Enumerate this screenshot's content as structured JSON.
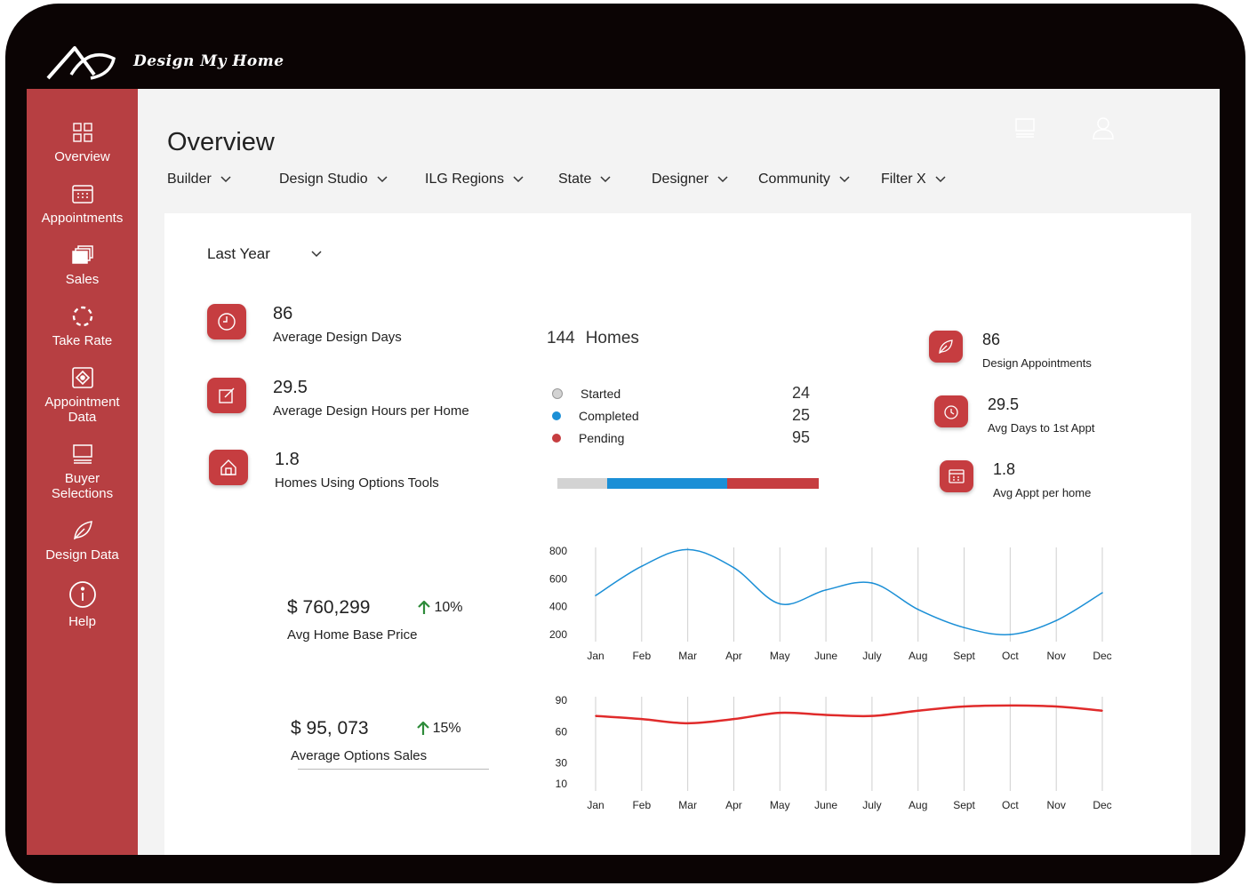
{
  "app": {
    "brand": "Design My Home"
  },
  "sidebar": {
    "items": [
      {
        "label": "Overview",
        "icon": "grid-icon"
      },
      {
        "label": "Appointments",
        "icon": "calendar-icon"
      },
      {
        "label": "Sales",
        "icon": "images-icon"
      },
      {
        "label": "Take Rate",
        "icon": "dashed-circle-icon"
      },
      {
        "label": "Appointment Data",
        "icon": "data-grid-icon"
      },
      {
        "label": "Buyer Selections",
        "icon": "monitor-icon"
      },
      {
        "label": "Design Data",
        "icon": "leaf-icon"
      },
      {
        "label": "Help",
        "icon": "info-icon"
      }
    ]
  },
  "header": {
    "title": "Overview"
  },
  "filters": {
    "builder": "Builder",
    "design_studio": "Design Studio",
    "ilg_regions": "ILG Regions",
    "state": "State",
    "designer": "Designer",
    "community": "Community",
    "filter_x": "Filter X"
  },
  "period": {
    "selected": "Last Year"
  },
  "metrics_left": [
    {
      "value": "86",
      "label": "Average Design Days",
      "icon": "clock-icon"
    },
    {
      "value": "29.5",
      "label": "Average Design Hours per Home",
      "icon": "edit-icon"
    },
    {
      "value": "1.8",
      "label": "Homes Using Options Tools",
      "icon": "home-icon"
    }
  ],
  "homes": {
    "count": "144",
    "label": "Homes",
    "statuses": [
      {
        "name": "Started",
        "value": "24",
        "color": "#d3d3d3"
      },
      {
        "name": "Completed",
        "value": "25",
        "color": "#1b8fd6"
      },
      {
        "name": "Pending",
        "value": "95",
        "color": "#c63d40"
      }
    ]
  },
  "metrics_right": [
    {
      "value": "86",
      "label": "Design Appointments",
      "icon": "leaf-icon"
    },
    {
      "value": "29.5",
      "label": "Avg Days to 1st Appt",
      "icon": "timer-icon"
    },
    {
      "value": "1.8",
      "label": "Avg Appt per home",
      "icon": "calendar-icon"
    }
  ],
  "kpis": [
    {
      "value": "$ 760,299",
      "change": "10%",
      "label": "Avg Home Base Price"
    },
    {
      "value": "$ 95, 073",
      "change": "15%",
      "label": "Average Options Sales"
    }
  ],
  "colors": {
    "brand_red": "#b73f42",
    "badge_red": "#c63d40",
    "blue": "#1b8fd6",
    "up_green": "#2e8b3a"
  },
  "chart_data": [
    {
      "type": "line",
      "categories": [
        "Jan",
        "Feb",
        "Mar",
        "Apr",
        "May",
        "June",
        "July",
        "Aug",
        "Sept",
        "Oct",
        "Nov",
        "Dec"
      ],
      "yticks": [
        800,
        600,
        400,
        200
      ],
      "ylim": [
        200,
        800
      ],
      "series": [
        {
          "values": [
            480,
            690,
            810,
            680,
            420,
            520,
            570,
            380,
            250,
            200,
            300,
            500
          ],
          "color": "#1b8fd6"
        }
      ],
      "grid": "vertical"
    },
    {
      "type": "line",
      "categories": [
        "Jan",
        "Feb",
        "Mar",
        "Apr",
        "May",
        "June",
        "July",
        "Aug",
        "Sept",
        "Oct",
        "Nov",
        "Dec"
      ],
      "yticks": [
        90,
        60,
        30,
        10
      ],
      "ylim": [
        10,
        90
      ],
      "series": [
        {
          "values": [
            75,
            72,
            68,
            72,
            78,
            76,
            75,
            80,
            84,
            85,
            84,
            80
          ],
          "color": "#e02b2b"
        }
      ],
      "grid": "vertical"
    }
  ]
}
